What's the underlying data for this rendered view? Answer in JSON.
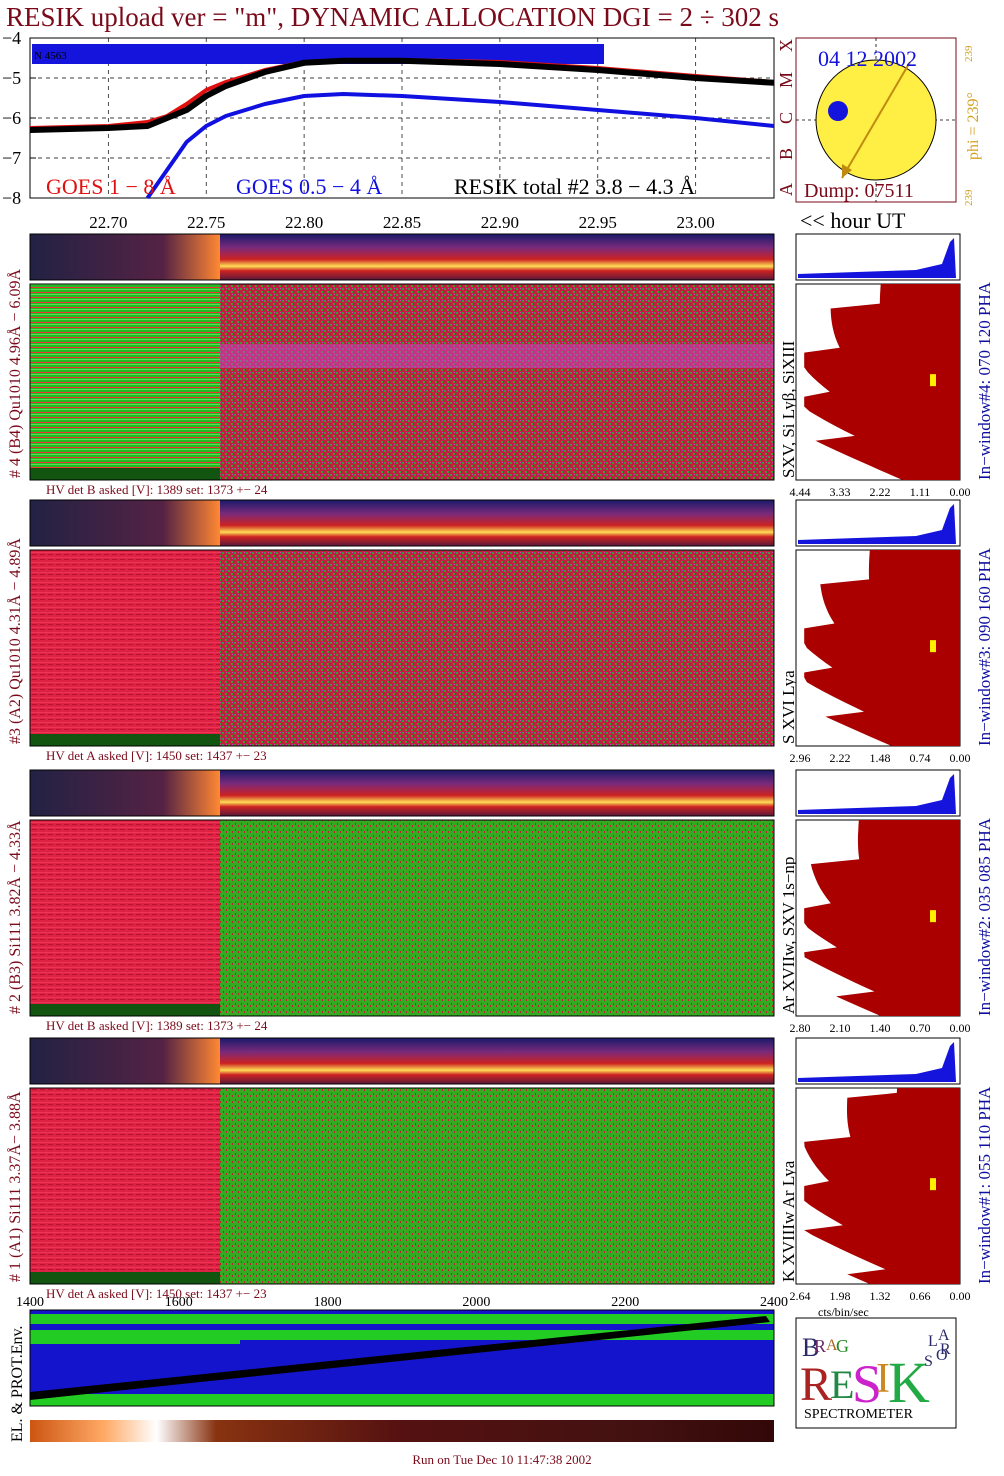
{
  "title": "RESIK upload ver = \"m\", DYNAMIC ALLOCATION  DGI =   2 ÷ 302 s",
  "footer": "Run on Tue Dec 10 11:47:38 2002",
  "colors": {
    "goes_long": "#e01010",
    "goes_short": "#1010e0",
    "resik": "#000000",
    "label": "#7a0a1a",
    "phi": "#d4a020",
    "window": "#1010a0",
    "pha_fill": "#aa0000",
    "sun": "#ffee44"
  },
  "chart_data": {
    "type": "line",
    "title": "",
    "xlabel": "",
    "ylabel": "",
    "ylim": [
      -8,
      -4
    ],
    "yticks": [
      "−4",
      "−5",
      "−6",
      "−7",
      "−8"
    ],
    "xlim": [
      22.66,
      23.04
    ],
    "xticks": [
      22.7,
      22.75,
      22.8,
      22.85,
      22.9,
      22.95,
      23.0
    ],
    "xtick_labels": [
      "22.70",
      "22.75",
      "22.80",
      "22.85",
      "22.90",
      "22.95",
      "23.00"
    ],
    "x_unit_label": "<< hour UT",
    "goes_classes": [
      "X",
      "M",
      "C",
      "B",
      "A"
    ],
    "bar_label": "N 4563",
    "legend": [
      "GOES 1 − 8 Å",
      "GOES 0.5 − 4 Å",
      "RESIK total #2  3.8 − 4.3 Å"
    ],
    "series": [
      {
        "name": "GOES 1 − 8 Å",
        "x": [
          22.66,
          22.7,
          22.72,
          22.73,
          22.74,
          22.75,
          22.76,
          22.78,
          22.8,
          22.82,
          22.85,
          22.9,
          22.95,
          23.0,
          23.04
        ],
        "values": [
          -6.25,
          -6.2,
          -6.1,
          -5.95,
          -5.65,
          -5.3,
          -5.1,
          -4.8,
          -4.6,
          -4.55,
          -4.55,
          -4.6,
          -4.75,
          -4.95,
          -5.1
        ]
      },
      {
        "name": "GOES 0.5 − 4 Å",
        "x": [
          22.72,
          22.74,
          22.75,
          22.76,
          22.78,
          22.8,
          22.82,
          22.85,
          22.9,
          22.95,
          23.0,
          23.04
        ],
        "values": [
          -8.0,
          -6.6,
          -6.2,
          -5.95,
          -5.65,
          -5.45,
          -5.4,
          -5.45,
          -5.6,
          -5.8,
          -6.0,
          -6.2
        ]
      },
      {
        "name": "RESIK total #2  3.8 − 4.3 Å",
        "x": [
          22.66,
          22.7,
          22.72,
          22.73,
          22.74,
          22.75,
          22.76,
          22.78,
          22.8,
          22.82,
          22.85,
          22.9,
          22.95,
          23.0,
          23.04
        ],
        "values": [
          -6.3,
          -6.25,
          -6.2,
          -6.0,
          -5.8,
          -5.45,
          -5.2,
          -4.85,
          -4.62,
          -4.57,
          -4.57,
          -4.65,
          -4.8,
          -5.0,
          -5.12
        ]
      }
    ]
  },
  "sun_panel": {
    "date": "04 12 2002",
    "dump": "Dump: 07511",
    "phi": "phi = 239°",
    "phi_small": "239"
  },
  "detectors": [
    {
      "id": 4,
      "side_label": "# 4 (B4) Qu1010 4.96Å − 6.09Å",
      "lines_label": "SXV, Si Lyβ, SiXIII",
      "hv": "HV det B asked [V]:  1389 set:  1373  +−   24",
      "window": "In−window#4:  070 120 PHA",
      "pha_ticks": [
        "4.44",
        "3.33",
        "2.22",
        "1.11",
        "0.00"
      ]
    },
    {
      "id": 3,
      "side_label": "#3 (A2) Qu1010  4.31Å − 4.89Å",
      "lines_label": "S XVI Lya",
      "hv": "HV det A asked [V]:  1450 set:  1437  +−   23",
      "window": "In−window#3:  090 160 PHA",
      "pha_ticks": [
        "2.96",
        "2.22",
        "1.48",
        "0.74",
        "0.00"
      ]
    },
    {
      "id": 2,
      "side_label": "# 2 (B3) Si111  3.82Å − 4.33Å",
      "lines_label": "Ar XVIIw, SXV 1s−np",
      "hv": "HV det B asked [V]:  1389 set:  1373  +−   24",
      "window": "In−window#2:  035 085 PHA",
      "pha_ticks": [
        "2.80",
        "2.10",
        "1.40",
        "0.70",
        "0.00"
      ]
    },
    {
      "id": 1,
      "side_label": "# 1 (A1) Si111  3.37Å−  3.88Å",
      "lines_label": "K XVIIIw  Ar Lya",
      "hv": "HV det A asked [V]:  1450 set:  1437  +−   23",
      "window": "In−window#1:  055 110 PHA",
      "pha_ticks": [
        "2.64",
        "1.98",
        "1.32",
        "0.66",
        "0.00"
      ]
    }
  ],
  "pha_unit": "cts/bin/sec",
  "env_panel": {
    "side_label": "EL. & PROT.Env.",
    "xticks": [
      "1400",
      "1600",
      "1800",
      "2000",
      "2200",
      "2400"
    ]
  },
  "logo": {
    "letters": [
      "B",
      "R",
      "A",
      "G",
      "R",
      "E",
      "S",
      "I",
      "K",
      "S",
      "O",
      "L",
      "A",
      "R"
    ],
    "word": "SPECTROMETER"
  }
}
